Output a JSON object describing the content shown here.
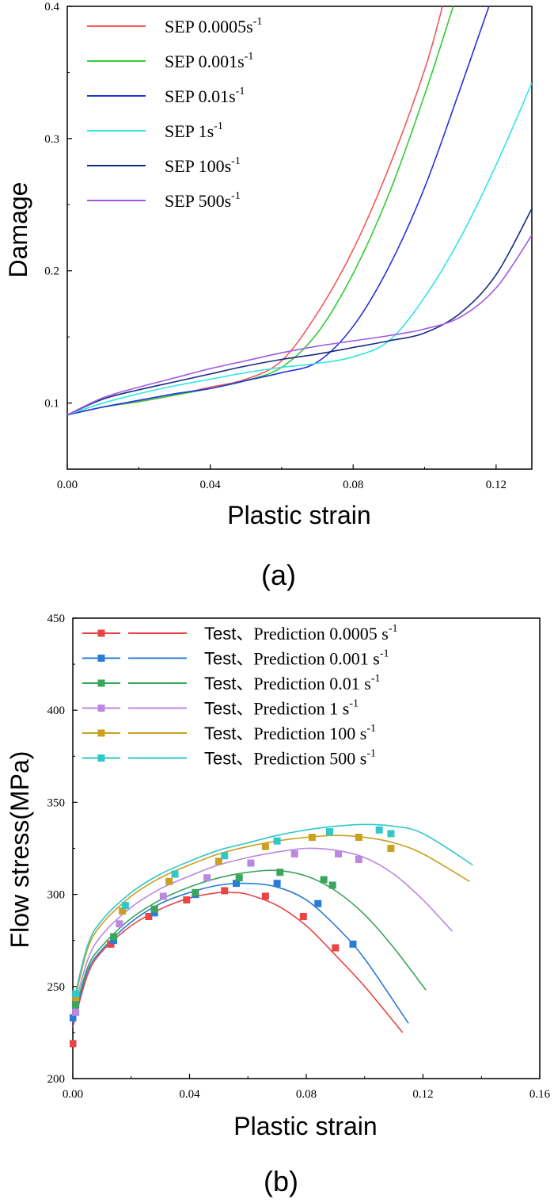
{
  "chart_data": [
    {
      "type": "line",
      "caption": "(a)",
      "xlabel": "Plastic strain",
      "ylabel": "Damage",
      "xlim": [
        0,
        0.13
      ],
      "ylim": [
        0.05,
        0.4
      ],
      "xticks": [
        "0.00",
        "0.04",
        "0.08",
        "0.12"
      ],
      "yticks": [
        "0.1",
        "0.2",
        "0.3",
        "0.4"
      ],
      "legend_position": "top-left",
      "series": [
        {
          "name": "SEP 0.0005s",
          "rate_exponent": "-1",
          "color": "#f25a5a",
          "x": [
            0,
            0.01,
            0.02,
            0.03,
            0.04,
            0.05,
            0.06,
            0.07,
            0.08,
            0.09,
            0.1,
            0.105
          ],
          "y": [
            0.091,
            0.097,
            0.101,
            0.106,
            0.112,
            0.118,
            0.132,
            0.168,
            0.216,
            0.278,
            0.352,
            0.4
          ]
        },
        {
          "name": "SEP 0.001s",
          "rate_exponent": "-1",
          "color": "#33cc33",
          "x": [
            0,
            0.01,
            0.02,
            0.03,
            0.04,
            0.05,
            0.06,
            0.07,
            0.08,
            0.09,
            0.1,
            0.108
          ],
          "y": [
            0.091,
            0.097,
            0.101,
            0.106,
            0.111,
            0.117,
            0.127,
            0.153,
            0.198,
            0.258,
            0.333,
            0.4
          ]
        },
        {
          "name": "SEP 0.01s",
          "rate_exponent": "-1",
          "color": "#2233dd",
          "x": [
            0,
            0.01,
            0.02,
            0.03,
            0.04,
            0.05,
            0.06,
            0.07,
            0.08,
            0.09,
            0.1,
            0.11,
            0.118
          ],
          "y": [
            0.091,
            0.097,
            0.102,
            0.107,
            0.111,
            0.117,
            0.123,
            0.131,
            0.158,
            0.203,
            0.263,
            0.338,
            0.4
          ]
        },
        {
          "name": "SEP 1s",
          "rate_exponent": "-1",
          "color": "#33e5e5",
          "x": [
            0,
            0.01,
            0.02,
            0.03,
            0.04,
            0.05,
            0.06,
            0.07,
            0.08,
            0.09,
            0.1,
            0.11,
            0.12,
            0.13
          ],
          "y": [
            0.091,
            0.1,
            0.107,
            0.113,
            0.118,
            0.123,
            0.127,
            0.13,
            0.135,
            0.147,
            0.18,
            0.225,
            0.28,
            0.342
          ]
        },
        {
          "name": "SEP 100s",
          "rate_exponent": "-1",
          "color": "#1a2a80",
          "x": [
            0,
            0.01,
            0.02,
            0.03,
            0.04,
            0.05,
            0.06,
            0.07,
            0.08,
            0.09,
            0.1,
            0.11,
            0.12,
            0.13
          ],
          "y": [
            0.091,
            0.103,
            0.11,
            0.116,
            0.122,
            0.128,
            0.133,
            0.137,
            0.142,
            0.147,
            0.153,
            0.168,
            0.197,
            0.247
          ]
        },
        {
          "name": "SEP 500s",
          "rate_exponent": "-1",
          "color": "#a05ae6",
          "x": [
            0,
            0.01,
            0.02,
            0.03,
            0.04,
            0.05,
            0.06,
            0.07,
            0.08,
            0.09,
            0.1,
            0.11,
            0.12,
            0.13
          ],
          "y": [
            0.091,
            0.104,
            0.112,
            0.119,
            0.126,
            0.132,
            0.138,
            0.143,
            0.147,
            0.151,
            0.156,
            0.165,
            0.187,
            0.227
          ]
        }
      ]
    },
    {
      "type": "line",
      "caption": "(b)",
      "xlabel": "Plastic strain",
      "ylabel": "Flow stress(MPa)",
      "xlim": [
        0,
        0.16
      ],
      "ylim": [
        200,
        450
      ],
      "xticks": [
        "0.00",
        "0.04",
        "0.08",
        "0.12",
        "0.16"
      ],
      "yticks": [
        "200",
        "250",
        "300",
        "350",
        "400",
        "450"
      ],
      "legend_position": "top-left",
      "legend_test_label": "Test、",
      "series": [
        {
          "name": "Prediction 0.0005 s",
          "rate_exponent": "-1",
          "color": "#e84545",
          "test_x": [
            0,
            0.013,
            0.026,
            0.039,
            0.052,
            0.066,
            0.079,
            0.09
          ],
          "test_y": [
            219,
            273,
            288,
            297,
            302,
            299,
            288,
            271
          ],
          "pred_x": [
            0,
            0.005,
            0.01,
            0.02,
            0.03,
            0.04,
            0.05,
            0.055,
            0.06,
            0.07,
            0.08,
            0.09,
            0.1,
            0.113
          ],
          "pred_y": [
            228,
            256,
            269,
            283,
            292,
            298,
            301,
            301,
            300,
            294,
            283,
            267,
            250,
            225
          ]
        },
        {
          "name": "Prediction 0.001 s",
          "rate_exponent": "-1",
          "color": "#2b7bd6",
          "test_x": [
            0,
            0.014,
            0.028,
            0.042,
            0.056,
            0.07,
            0.084,
            0.096
          ],
          "test_y": [
            233,
            275,
            290,
            300,
            306,
            306,
            295,
            273
          ],
          "pred_x": [
            0,
            0.005,
            0.01,
            0.02,
            0.03,
            0.04,
            0.05,
            0.06,
            0.07,
            0.08,
            0.09,
            0.1,
            0.115
          ],
          "pred_y": [
            230,
            258,
            270,
            285,
            295,
            301,
            305,
            306,
            304,
            297,
            283,
            265,
            230
          ]
        },
        {
          "name": "Prediction 0.01 s",
          "rate_exponent": "-1",
          "color": "#3aa55c",
          "test_x": [
            0.001,
            0.014,
            0.028,
            0.042,
            0.057,
            0.071,
            0.086,
            0.089
          ],
          "test_y": [
            240,
            277,
            292,
            301,
            309,
            312,
            308,
            305
          ],
          "pred_x": [
            0,
            0.005,
            0.01,
            0.02,
            0.03,
            0.04,
            0.05,
            0.06,
            0.07,
            0.08,
            0.09,
            0.1,
            0.11,
            0.121
          ],
          "pred_y": [
            232,
            260,
            272,
            287,
            297,
            304,
            309,
            312,
            313,
            310,
            302,
            289,
            271,
            248
          ]
        },
        {
          "name": "Prediction 1 s",
          "rate_exponent": "-1",
          "color": "#bb88e0",
          "test_x": [
            0.001,
            0.016,
            0.031,
            0.046,
            0.061,
            0.076,
            0.091,
            0.098
          ],
          "test_y": [
            236,
            284,
            299,
            309,
            317,
            322,
            322,
            319
          ],
          "pred_x": [
            0,
            0.005,
            0.01,
            0.02,
            0.03,
            0.04,
            0.05,
            0.06,
            0.07,
            0.08,
            0.09,
            0.1,
            0.11,
            0.12,
            0.13
          ],
          "pred_y": [
            235,
            264,
            278,
            293,
            303,
            310,
            316,
            320,
            323,
            325,
            324,
            320,
            311,
            297,
            280
          ]
        },
        {
          "name": "Prediction 100 s",
          "rate_exponent": "-1",
          "color": "#c9a020",
          "test_x": [
            0.001,
            0.017,
            0.033,
            0.05,
            0.066,
            0.082,
            0.098,
            0.109
          ],
          "test_y": [
            244,
            291,
            307,
            318,
            326,
            331,
            331,
            325
          ],
          "pred_x": [
            0,
            0.005,
            0.01,
            0.02,
            0.03,
            0.04,
            0.05,
            0.06,
            0.07,
            0.08,
            0.09,
            0.1,
            0.11,
            0.12,
            0.136
          ],
          "pred_y": [
            238,
            270,
            284,
            299,
            309,
            316,
            322,
            326,
            329,
            331,
            332,
            331,
            328,
            322,
            307
          ]
        },
        {
          "name": "Prediction 500 s",
          "rate_exponent": "-1",
          "color": "#30c8c8",
          "test_x": [
            0.001,
            0.018,
            0.035,
            0.052,
            0.07,
            0.088,
            0.105,
            0.109
          ],
          "test_y": [
            246,
            294,
            311,
            321,
            329,
            334,
            335,
            333
          ],
          "pred_x": [
            0,
            0.005,
            0.01,
            0.02,
            0.03,
            0.04,
            0.05,
            0.06,
            0.07,
            0.08,
            0.09,
            0.1,
            0.11,
            0.12,
            0.137
          ],
          "pred_y": [
            240,
            272,
            286,
            301,
            311,
            318,
            324,
            328,
            332,
            335,
            337,
            338,
            337,
            333,
            316
          ]
        }
      ]
    }
  ]
}
